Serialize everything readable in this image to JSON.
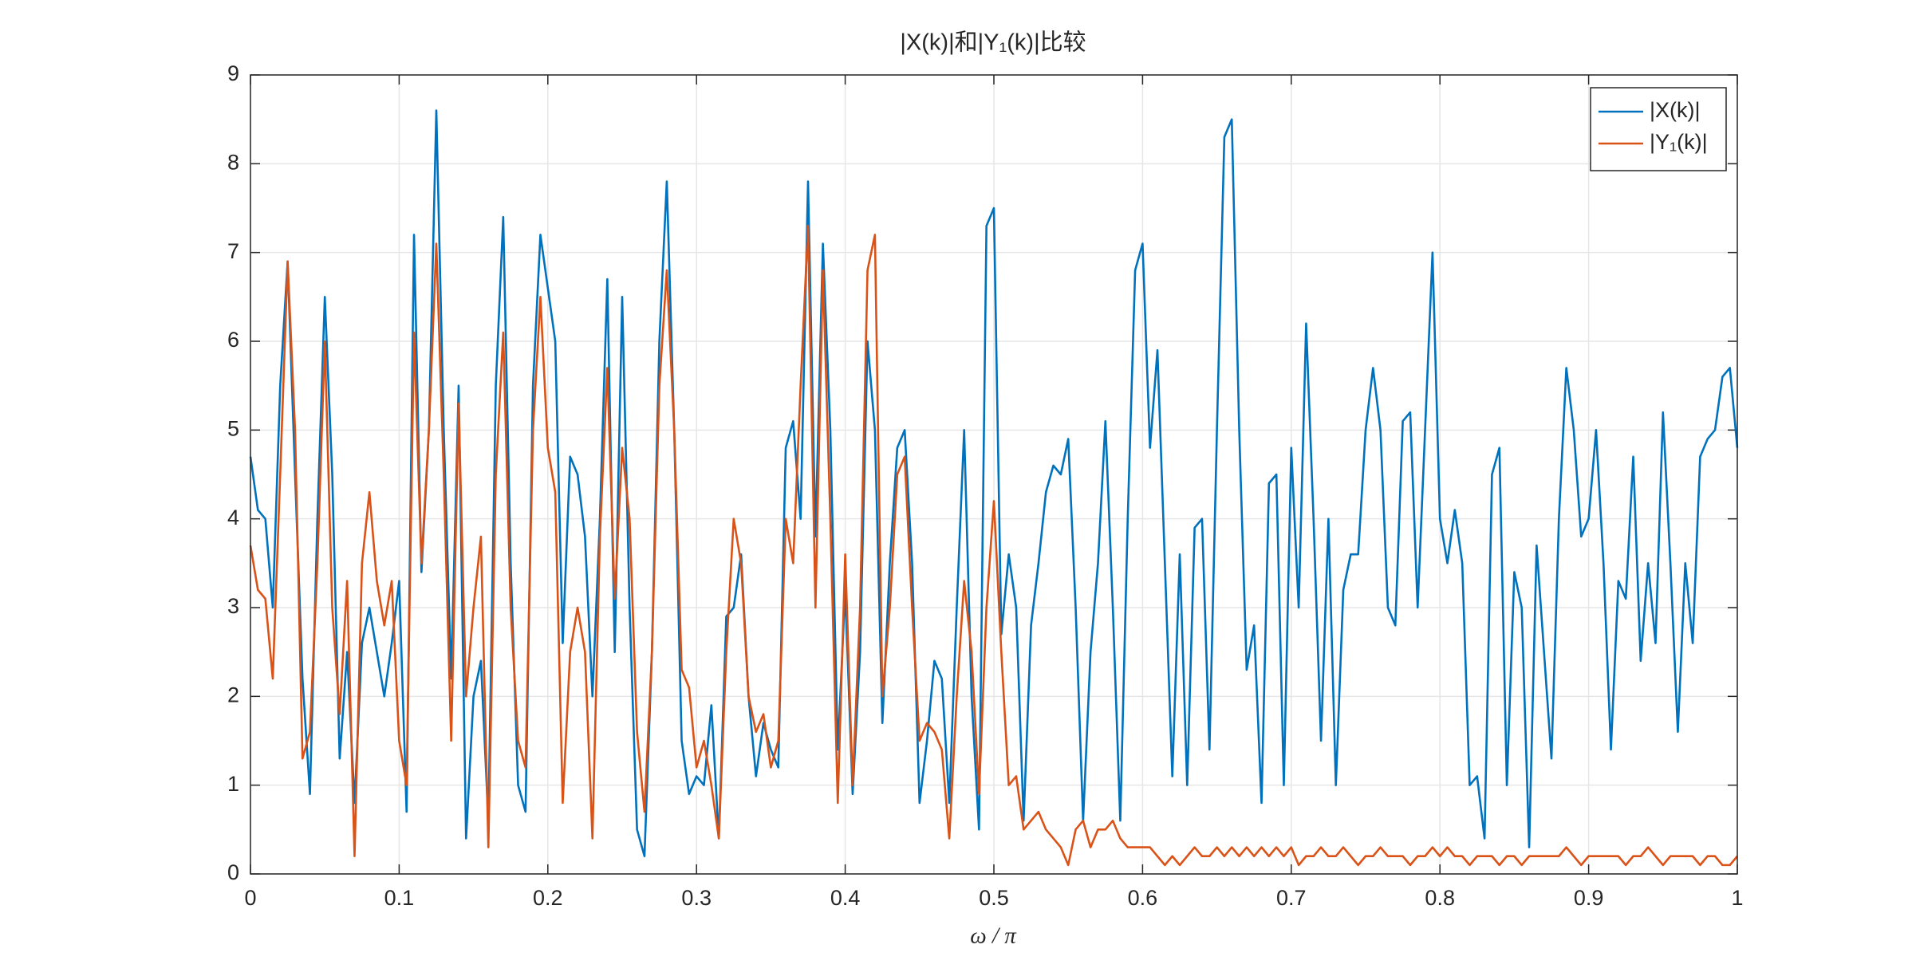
{
  "chart_data": {
    "type": "line",
    "title": "|X(k)|和|Y₁(k)|比较",
    "x_label": "ω / π",
    "x": [
      0,
      0.005,
      0.01,
      0.015,
      0.02,
      0.025,
      0.03,
      0.035,
      0.04,
      0.045,
      0.05,
      0.055,
      0.06,
      0.065,
      0.07,
      0.075,
      0.08,
      0.085,
      0.09,
      0.095,
      0.1,
      0.105,
      0.11,
      0.115,
      0.12,
      0.125,
      0.13,
      0.135,
      0.14,
      0.145,
      0.15,
      0.155,
      0.16,
      0.165,
      0.17,
      0.175,
      0.18,
      0.185,
      0.19,
      0.195,
      0.2,
      0.205,
      0.21,
      0.215,
      0.22,
      0.225,
      0.23,
      0.235,
      0.24,
      0.245,
      0.25,
      0.255,
      0.26,
      0.265,
      0.27,
      0.275,
      0.28,
      0.285,
      0.29,
      0.295,
      0.3,
      0.305,
      0.31,
      0.315,
      0.32,
      0.325,
      0.33,
      0.335,
      0.34,
      0.345,
      0.35,
      0.355,
      0.36,
      0.365,
      0.37,
      0.375,
      0.38,
      0.385,
      0.39,
      0.395,
      0.4,
      0.405,
      0.41,
      0.415,
      0.42,
      0.425,
      0.43,
      0.435,
      0.44,
      0.445,
      0.45,
      0.455,
      0.46,
      0.465,
      0.47,
      0.475,
      0.48,
      0.485,
      0.49,
      0.495,
      0.5,
      0.505,
      0.51,
      0.515,
      0.52,
      0.525,
      0.53,
      0.535,
      0.54,
      0.545,
      0.55,
      0.555,
      0.56,
      0.565,
      0.57,
      0.575,
      0.58,
      0.585,
      0.59,
      0.595,
      0.6,
      0.605,
      0.61,
      0.615,
      0.62,
      0.625,
      0.63,
      0.635,
      0.64,
      0.645,
      0.65,
      0.655,
      0.66,
      0.665,
      0.67,
      0.675,
      0.68,
      0.685,
      0.69,
      0.695,
      0.7,
      0.705,
      0.71,
      0.715,
      0.72,
      0.725,
      0.73,
      0.735,
      0.74,
      0.745,
      0.75,
      0.755,
      0.76,
      0.765,
      0.77,
      0.775,
      0.78,
      0.785,
      0.79,
      0.795,
      0.8,
      0.805,
      0.81,
      0.815,
      0.82,
      0.825,
      0.83,
      0.835,
      0.84,
      0.845,
      0.85,
      0.855,
      0.86,
      0.865,
      0.87,
      0.875,
      0.88,
      0.885,
      0.89,
      0.895,
      0.9,
      0.905,
      0.91,
      0.915,
      0.92,
      0.925,
      0.93,
      0.935,
      0.94,
      0.945,
      0.95,
      0.955,
      0.96,
      0.965,
      0.97,
      0.975,
      0.98,
      0.985,
      0.99,
      0.995,
      1
    ],
    "series": [
      {
        "name": "|X(k)|",
        "color": "#0072bd",
        "values": [
          4.7,
          4.1,
          4.0,
          3.0,
          5.5,
          6.9,
          4.5,
          2.2,
          0.9,
          4.0,
          6.5,
          4.5,
          1.3,
          2.5,
          0.8,
          2.6,
          3.0,
          2.5,
          2.0,
          2.6,
          3.3,
          0.7,
          7.2,
          3.4,
          5.0,
          8.6,
          5.0,
          2.2,
          5.5,
          0.4,
          2.0,
          2.4,
          0.6,
          5.5,
          7.4,
          3.5,
          1.0,
          0.7,
          5.5,
          7.2,
          6.6,
          6.0,
          2.6,
          4.7,
          4.5,
          3.8,
          2.0,
          4.0,
          6.7,
          2.5,
          6.5,
          3.0,
          0.5,
          0.2,
          2.5,
          6.0,
          7.8,
          5.0,
          1.5,
          0.9,
          1.1,
          1.0,
          1.9,
          0.4,
          2.9,
          3.0,
          3.6,
          2.0,
          1.1,
          1.7,
          1.4,
          1.2,
          4.8,
          5.1,
          4.0,
          7.8,
          3.8,
          7.1,
          5.0,
          1.4,
          3.2,
          0.9,
          2.5,
          6.0,
          5.0,
          1.7,
          3.5,
          4.8,
          5.0,
          3.5,
          0.8,
          1.5,
          2.4,
          2.2,
          0.8,
          3.0,
          5.0,
          2.0,
          0.5,
          7.3,
          7.5,
          2.7,
          3.6,
          3.0,
          0.6,
          2.8,
          3.5,
          4.3,
          4.6,
          4.5,
          4.9,
          3.0,
          0.6,
          2.5,
          3.5,
          5.1,
          3.0,
          0.6,
          4.0,
          6.8,
          7.1,
          4.8,
          5.9,
          3.5,
          1.1,
          3.6,
          1.0,
          3.9,
          4.0,
          1.4,
          5.0,
          8.3,
          8.5,
          5.0,
          2.3,
          2.8,
          0.8,
          4.4,
          4.5,
          1.0,
          4.8,
          3.0,
          6.2,
          4.0,
          1.5,
          4.0,
          1.0,
          3.2,
          3.6,
          3.6,
          5.0,
          5.7,
          5.0,
          3.0,
          2.8,
          5.1,
          5.2,
          3.0,
          5.0,
          7.0,
          4.0,
          3.5,
          4.1,
          3.5,
          1.0,
          1.1,
          0.4,
          4.5,
          4.8,
          1.0,
          3.4,
          3.0,
          0.3,
          3.7,
          2.5,
          1.3,
          4.0,
          5.7,
          5.0,
          3.8,
          4.0,
          5.0,
          3.5,
          1.4,
          3.3,
          3.1,
          4.7,
          2.4,
          3.5,
          2.6,
          5.2,
          3.5,
          1.6,
          3.5,
          2.6,
          4.7,
          4.9,
          5.0,
          5.6,
          5.7,
          4.8
        ]
      },
      {
        "name": "|Y₁(k)|",
        "color": "#d95319",
        "values": [
          3.7,
          3.2,
          3.1,
          2.2,
          4.5,
          6.9,
          5.0,
          1.3,
          1.6,
          3.5,
          6.0,
          3.0,
          1.8,
          3.3,
          0.2,
          3.5,
          4.3,
          3.3,
          2.8,
          3.3,
          1.5,
          1.0,
          6.1,
          3.5,
          5.0,
          7.1,
          4.5,
          1.5,
          5.3,
          2.0,
          3.0,
          3.8,
          0.3,
          4.5,
          6.1,
          3.0,
          1.5,
          1.2,
          5.0,
          6.5,
          4.8,
          4.3,
          0.8,
          2.5,
          3.0,
          2.5,
          0.4,
          3.8,
          5.7,
          3.1,
          4.8,
          4.0,
          1.6,
          0.7,
          2.5,
          5.5,
          6.8,
          5.0,
          2.3,
          2.1,
          1.2,
          1.5,
          1.0,
          0.4,
          2.5,
          4.0,
          3.5,
          2.0,
          1.6,
          1.8,
          1.2,
          1.5,
          4.0,
          3.5,
          5.5,
          7.3,
          3.0,
          6.8,
          4.0,
          0.8,
          3.6,
          1.0,
          3.0,
          6.8,
          7.2,
          2.0,
          3.0,
          4.5,
          4.7,
          3.0,
          1.5,
          1.7,
          1.6,
          1.4,
          0.4,
          2.0,
          3.3,
          2.5,
          0.9,
          3.0,
          4.2,
          2.5,
          1.0,
          1.1,
          0.5,
          0.6,
          0.7,
          0.5,
          0.4,
          0.3,
          0.1,
          0.5,
          0.6,
          0.3,
          0.5,
          0.5,
          0.6,
          0.4,
          0.3,
          0.3,
          0.3,
          0.3,
          0.2,
          0.1,
          0.2,
          0.1,
          0.2,
          0.3,
          0.2,
          0.2,
          0.3,
          0.2,
          0.3,
          0.2,
          0.3,
          0.2,
          0.3,
          0.2,
          0.3,
          0.2,
          0.3,
          0.1,
          0.2,
          0.2,
          0.3,
          0.2,
          0.2,
          0.3,
          0.2,
          0.1,
          0.2,
          0.2,
          0.3,
          0.2,
          0.2,
          0.2,
          0.1,
          0.2,
          0.2,
          0.3,
          0.2,
          0.3,
          0.2,
          0.2,
          0.1,
          0.2,
          0.2,
          0.2,
          0.1,
          0.2,
          0.2,
          0.1,
          0.2,
          0.2,
          0.2,
          0.2,
          0.2,
          0.3,
          0.2,
          0.1,
          0.2,
          0.2,
          0.2,
          0.2,
          0.2,
          0.1,
          0.2,
          0.2,
          0.3,
          0.2,
          0.1,
          0.2,
          0.2,
          0.2,
          0.2,
          0.1,
          0.2,
          0.2,
          0.1,
          0.1,
          0.2
        ]
      }
    ],
    "xlim": [
      0,
      1
    ],
    "xticks": [
      0,
      0.1,
      0.2,
      0.3,
      0.4,
      0.5,
      0.6,
      0.7,
      0.8,
      0.9,
      1
    ],
    "ylim": [
      0,
      9
    ],
    "yticks": [
      0,
      1,
      2,
      3,
      4,
      5,
      6,
      7,
      8,
      9
    ],
    "grid": true,
    "legend": "northeast"
  }
}
